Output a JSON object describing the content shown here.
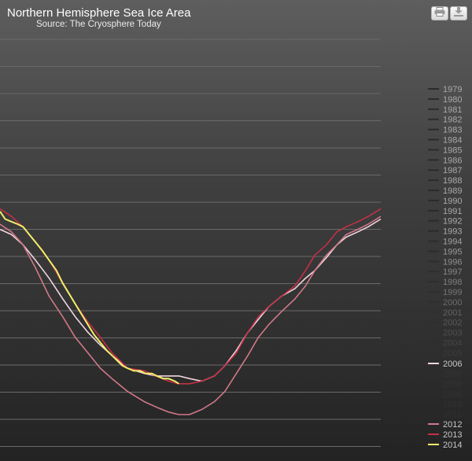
{
  "toolbar": {
    "print_icon": "printer-icon",
    "export_icon": "download-icon"
  },
  "colors": {
    "grid": "#6a6a6a",
    "legend_text": "#c8c8c8",
    "background_top": "#5e5e5e",
    "background_bottom": "#232323"
  },
  "chart_data": {
    "type": "line",
    "title": "Northern Hemisphere Sea Ice Area",
    "subtitle": "Source: The Cryosphere Today",
    "xlabel": "",
    "ylabel": "",
    "grid": true,
    "legend_position": "right",
    "x_units": "day of year (estimated)",
    "y_units": "relative ice area (estimated, no axis labels visible)",
    "xlim": [
      1,
      365
    ],
    "ylim": [
      0,
      1
    ],
    "legend": {
      "muted_years": [
        "1979",
        "1980",
        "1981",
        "1982",
        "1983",
        "1984",
        "1985",
        "1986",
        "1987",
        "1988",
        "1989",
        "1990",
        "1991",
        "1992",
        "1993",
        "1994",
        "1995",
        "1996",
        "1997",
        "1998",
        "1999",
        "2000",
        "2001",
        "2002",
        "2003",
        "2004",
        "2005",
        "2007",
        "2008",
        "2009",
        "2010",
        "2011"
      ],
      "highlighted_years": [
        "2006",
        "2012",
        "2013",
        "2014"
      ]
    },
    "series": [
      {
        "name": "2006",
        "color": "#f2d6e0",
        "x": [
          1,
          12,
          23,
          35,
          48,
          61,
          73,
          85,
          97,
          108,
          123,
          139,
          150,
          162,
          172,
          182,
          194,
          206,
          216,
          227,
          238,
          248,
          258,
          270,
          283,
          293,
          302,
          313,
          323,
          332,
          343,
          353,
          365
        ],
        "y": [
          0.72,
          0.7,
          0.66,
          0.6,
          0.53,
          0.45,
          0.38,
          0.32,
          0.27,
          0.23,
          0.18,
          0.16,
          0.15,
          0.15,
          0.15,
          0.14,
          0.13,
          0.15,
          0.19,
          0.25,
          0.32,
          0.37,
          0.42,
          0.46,
          0.49,
          0.53,
          0.56,
          0.61,
          0.66,
          0.69,
          0.71,
          0.73,
          0.76
        ]
      },
      {
        "name": "2012",
        "color": "#d07888",
        "x": [
          1,
          12,
          23,
          35,
          48,
          61,
          73,
          85,
          97,
          108,
          123,
          139,
          150,
          162,
          172,
          182,
          194,
          206,
          216,
          227,
          238,
          248,
          258,
          270,
          283,
          293,
          302,
          313,
          323,
          332,
          343,
          353,
          365
        ],
        "y": [
          0.74,
          0.71,
          0.66,
          0.57,
          0.46,
          0.38,
          0.3,
          0.24,
          0.18,
          0.14,
          0.09,
          0.05,
          0.03,
          0.01,
          0.0,
          0.0,
          0.02,
          0.05,
          0.09,
          0.16,
          0.23,
          0.3,
          0.35,
          0.4,
          0.45,
          0.5,
          0.56,
          0.62,
          0.66,
          0.7,
          0.72,
          0.74,
          0.77
        ]
      },
      {
        "name": "2013",
        "color": "#c43046",
        "x": [
          1,
          12,
          23,
          35,
          48,
          61,
          73,
          85,
          97,
          108,
          123,
          139,
          150,
          162,
          172,
          182,
          194,
          206,
          216,
          227,
          238,
          248,
          258,
          270,
          283,
          293,
          302,
          313,
          323,
          332,
          343,
          353,
          365
        ],
        "y": [
          0.8,
          0.77,
          0.73,
          0.67,
          0.6,
          0.51,
          0.43,
          0.36,
          0.3,
          0.24,
          0.18,
          0.17,
          0.15,
          0.13,
          0.12,
          0.12,
          0.13,
          0.15,
          0.19,
          0.24,
          0.32,
          0.38,
          0.42,
          0.46,
          0.5,
          0.56,
          0.62,
          0.66,
          0.71,
          0.73,
          0.75,
          0.77,
          0.8
        ]
      },
      {
        "name": "2014",
        "color": "#f2ee6a",
        "x": [
          1,
          6,
          12,
          18,
          23,
          29,
          35,
          41,
          48,
          55,
          61,
          67,
          73,
          79,
          85,
          91,
          97,
          103,
          108,
          113,
          118,
          123,
          129,
          135,
          140,
          146,
          151,
          157,
          162,
          168,
          172
        ],
        "y": [
          0.79,
          0.76,
          0.75,
          0.74,
          0.73,
          0.7,
          0.67,
          0.64,
          0.6,
          0.56,
          0.51,
          0.47,
          0.43,
          0.39,
          0.35,
          0.31,
          0.28,
          0.25,
          0.23,
          0.21,
          0.19,
          0.18,
          0.17,
          0.17,
          0.16,
          0.16,
          0.15,
          0.14,
          0.14,
          0.13,
          0.12
        ]
      }
    ]
  }
}
